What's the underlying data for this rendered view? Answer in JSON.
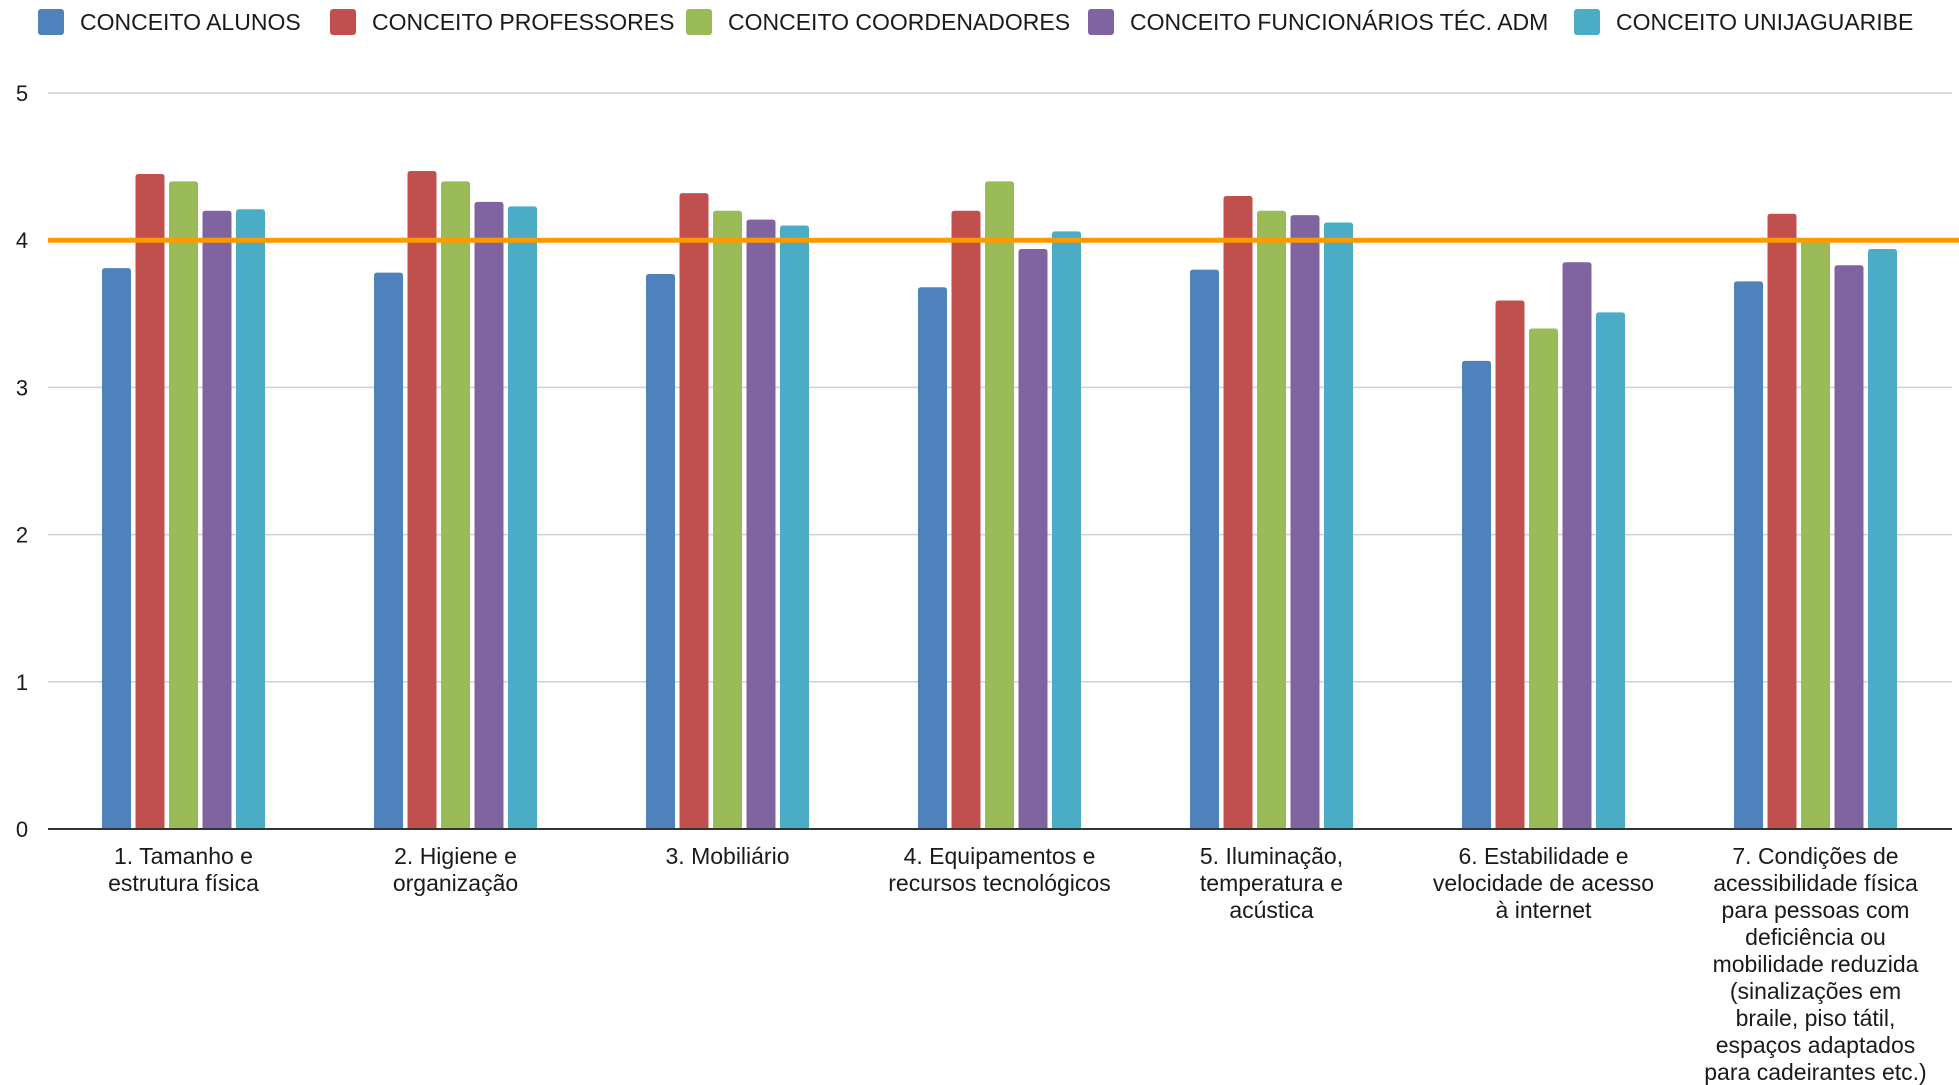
{
  "chart_data": {
    "type": "bar",
    "title": "",
    "xlabel": "",
    "ylabel": "",
    "ylim": [
      0,
      5
    ],
    "yticks": [
      0,
      1,
      2,
      3,
      4,
      5
    ],
    "grid": true,
    "legend_position": "top",
    "categories": [
      "1. Tamanho e estrutura física",
      "2. Higiene e organização",
      "3. Mobiliário",
      "4. Equipamentos e recursos tecnológicos",
      "5. Iluminação, temperatura e acústica",
      "6. Estabilidade e velocidade de acesso à internet",
      "7. Condições de acessibilidade física para pessoas com deficiência ou mobilidade reduzida (sinalizações em braile, piso tátil, espaços adaptados para cadeirantes etc.)"
    ],
    "category_label_lines": [
      [
        "1. Tamanho e",
        "estrutura física"
      ],
      [
        "2. Higiene e",
        "organização"
      ],
      [
        "3. Mobiliário"
      ],
      [
        "4. Equipamentos e",
        "recursos tecnológicos"
      ],
      [
        "5. Iluminação,",
        "temperatura e",
        "acústica"
      ],
      [
        "6. Estabilidade e",
        "velocidade de acesso",
        "à internet"
      ],
      [
        "7. Condições de",
        "acessibilidade física",
        "para pessoas com",
        "deficiência ou",
        "mobilidade reduzida",
        "(sinalizações em",
        "braile, piso tátil,",
        "espaços adaptados",
        "para cadeirantes etc.)"
      ]
    ],
    "series": [
      {
        "name": "CONCEITO ALUNOS",
        "color": "#4f81bd",
        "values": [
          3.81,
          3.78,
          3.77,
          3.68,
          3.8,
          3.18,
          3.72
        ]
      },
      {
        "name": "CONCEITO PROFESSORES",
        "color": "#c0504d",
        "values": [
          4.45,
          4.47,
          4.32,
          4.2,
          4.3,
          3.59,
          4.18
        ]
      },
      {
        "name": "CONCEITO COORDENADORES",
        "color": "#9bbb59",
        "values": [
          4.4,
          4.4,
          4.2,
          4.4,
          4.2,
          3.4,
          4.0
        ]
      },
      {
        "name": "CONCEITO FUNCIONÁRIOS TÉC. ADM",
        "color": "#8064a2",
        "values": [
          4.2,
          4.26,
          4.14,
          3.94,
          4.17,
          3.85,
          3.83
        ]
      },
      {
        "name": "CONCEITO UNIJAGUARIBE",
        "color": "#4bacc6",
        "values": [
          4.21,
          4.23,
          4.1,
          4.06,
          4.12,
          3.51,
          3.94
        ]
      }
    ],
    "reference_line": {
      "value": 4,
      "color": "#ff9900"
    },
    "grid_color": "#d0d0d0",
    "axis_color": "#333333"
  }
}
